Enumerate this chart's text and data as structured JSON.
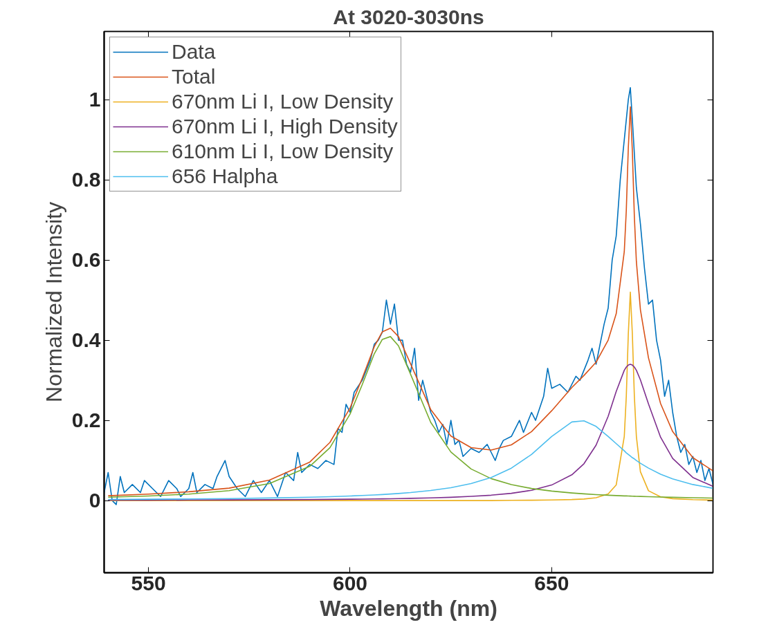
{
  "chart_data": {
    "type": "line",
    "title": "At 3020-3030ns",
    "xlabel": "Wavelength (nm)",
    "ylabel": "Normalized Intensity",
    "xlim": [
      539,
      690
    ],
    "ylim": [
      -0.18,
      1.17
    ],
    "xticks": [
      550,
      600,
      650
    ],
    "yticks": [
      0,
      0.2,
      0.4,
      0.6,
      0.8,
      1
    ],
    "grid": false,
    "legend": "top left",
    "marker": "none",
    "line_style": "solid",
    "series": [
      {
        "name": "Data",
        "color": "#0072bd",
        "x": [
          539,
          540,
          541,
          542,
          543,
          544,
          546,
          548,
          549,
          551,
          553,
          555,
          557,
          558,
          560,
          561,
          562,
          564,
          566,
          567,
          569,
          570,
          572,
          574,
          576,
          578,
          580,
          582,
          584,
          586,
          587,
          588,
          590,
          592,
          594,
          596,
          597,
          598,
          599,
          600,
          601,
          603,
          605,
          606,
          607,
          608,
          609,
          610,
          611,
          612,
          613,
          614,
          615,
          616,
          617,
          618,
          620,
          621,
          622,
          623,
          624,
          625,
          626,
          627,
          628,
          630,
          632,
          634,
          635,
          636,
          637,
          638,
          640,
          642,
          643,
          645,
          646,
          648,
          649,
          650,
          652,
          654,
          656,
          657,
          659,
          660,
          661,
          663,
          664,
          665,
          666,
          667,
          668,
          669,
          669.5,
          670,
          671,
          672,
          673,
          674,
          675,
          676,
          677,
          678,
          679,
          680,
          681,
          682,
          683,
          684,
          685,
          686,
          687,
          688,
          689,
          690
        ],
        "values": [
          0.02,
          0.07,
          0.0,
          -0.01,
          0.06,
          0.02,
          0.04,
          0.02,
          0.05,
          0.03,
          0.01,
          0.05,
          0.03,
          0.01,
          0.03,
          0.07,
          0.02,
          0.04,
          0.03,
          0.06,
          0.1,
          0.06,
          0.03,
          0.01,
          0.05,
          0.02,
          0.05,
          0.01,
          0.07,
          0.05,
          0.12,
          0.07,
          0.09,
          0.08,
          0.1,
          0.09,
          0.18,
          0.17,
          0.24,
          0.22,
          0.27,
          0.3,
          0.35,
          0.39,
          0.4,
          0.42,
          0.5,
          0.44,
          0.49,
          0.4,
          0.4,
          0.34,
          0.32,
          0.38,
          0.25,
          0.3,
          0.22,
          0.2,
          0.17,
          0.19,
          0.14,
          0.2,
          0.14,
          0.15,
          0.11,
          0.13,
          0.12,
          0.14,
          0.12,
          0.1,
          0.13,
          0.15,
          0.16,
          0.2,
          0.17,
          0.22,
          0.2,
          0.26,
          0.33,
          0.28,
          0.29,
          0.27,
          0.31,
          0.3,
          0.35,
          0.38,
          0.34,
          0.44,
          0.48,
          0.6,
          0.66,
          0.8,
          0.9,
          1.0,
          1.03,
          0.95,
          0.78,
          0.69,
          0.58,
          0.49,
          0.5,
          0.4,
          0.35,
          0.26,
          0.3,
          0.22,
          0.16,
          0.12,
          0.14,
          0.09,
          0.11,
          0.07,
          0.1,
          0.05,
          0.08,
          0.04
        ]
      },
      {
        "name": "Total",
        "color": "#d95319",
        "x": [
          540,
          550,
          560,
          570,
          580,
          590,
          595,
          600,
          603,
          606,
          608,
          610,
          612,
          615,
          620,
          625,
          630,
          635,
          640,
          645,
          650,
          655,
          658,
          661,
          664,
          666,
          668,
          668.5,
          669,
          669.5,
          670,
          670.5,
          671,
          672,
          674,
          677,
          680,
          685,
          690
        ],
        "values": [
          0.012,
          0.016,
          0.022,
          0.031,
          0.051,
          0.096,
          0.145,
          0.231,
          0.305,
          0.384,
          0.421,
          0.43,
          0.409,
          0.341,
          0.227,
          0.161,
          0.132,
          0.126,
          0.139,
          0.172,
          0.224,
          0.282,
          0.312,
          0.345,
          0.4,
          0.466,
          0.621,
          0.724,
          0.88,
          0.982,
          0.872,
          0.708,
          0.596,
          0.476,
          0.356,
          0.242,
          0.172,
          0.107,
          0.074
        ]
      },
      {
        "name": "670nm Li I, Low Density",
        "color": "#edb120",
        "x": [
          540,
          550,
          560,
          570,
          580,
          590,
          595,
          600,
          603,
          606,
          608,
          610,
          612,
          615,
          620,
          625,
          630,
          635,
          640,
          645,
          650,
          655,
          658,
          661,
          664,
          666,
          668,
          668.5,
          669,
          669.5,
          670,
          670.5,
          671,
          672,
          674,
          677,
          680,
          685,
          690
        ],
        "values": [
          0,
          0,
          0,
          0,
          0,
          0,
          0,
          0,
          0,
          0,
          0,
          0,
          0,
          0,
          0,
          0,
          0,
          0,
          0.0006,
          0.0009,
          0.0014,
          0.0025,
          0.0039,
          0.0071,
          0.0166,
          0.039,
          0.16,
          0.26,
          0.416,
          0.52,
          0.416,
          0.26,
          0.16,
          0.072,
          0.0245,
          0.0091,
          0.0047,
          0.0022,
          0.0012
        ]
      },
      {
        "name": "670nm Li I, High Density",
        "color": "#7e2f8e",
        "x": [
          540,
          550,
          560,
          570,
          580,
          590,
          595,
          600,
          603,
          606,
          608,
          610,
          612,
          615,
          620,
          625,
          630,
          635,
          640,
          645,
          650,
          655,
          658,
          661,
          664,
          666,
          668,
          668.5,
          669,
          669.5,
          670,
          670.5,
          671,
          672,
          674,
          677,
          680,
          685,
          690
        ],
        "values": [
          0.001,
          0.0012,
          0.0014,
          0.0017,
          0.0021,
          0.0026,
          0.003,
          0.0034,
          0.0037,
          0.0041,
          0.0043,
          0.0046,
          0.005,
          0.0055,
          0.0067,
          0.0082,
          0.0104,
          0.0134,
          0.0181,
          0.0257,
          0.0388,
          0.0643,
          0.0919,
          0.138,
          0.21,
          0.272,
          0.325,
          0.333,
          0.338,
          0.34,
          0.338,
          0.333,
          0.325,
          0.301,
          0.241,
          0.158,
          0.105,
          0.0576,
          0.0355
        ]
      },
      {
        "name": "610nm Li I, Low Density",
        "color": "#77ac30",
        "x": [
          540,
          550,
          560,
          570,
          580,
          590,
          595,
          600,
          603,
          606,
          608,
          610,
          612,
          615,
          620,
          625,
          630,
          635,
          640,
          645,
          650,
          655,
          658,
          661,
          664,
          666,
          668,
          668.5,
          669,
          669.5,
          670,
          670.5,
          671,
          672,
          674,
          677,
          680,
          685,
          690
        ],
        "values": [
          0.0083,
          0.0113,
          0.0161,
          0.0247,
          0.0423,
          0.0854,
          0.132,
          0.216,
          0.289,
          0.366,
          0.402,
          0.409,
          0.386,
          0.315,
          0.195,
          0.121,
          0.0788,
          0.0547,
          0.0398,
          0.0301,
          0.0236,
          0.0189,
          0.0167,
          0.0149,
          0.0134,
          0.0125,
          0.0116,
          0.0116,
          0.0113,
          0.0111,
          0.0109,
          0.0108,
          0.0106,
          0.0103,
          0.0096,
          0.0088,
          0.0081,
          0.0071,
          0.0062
        ]
      },
      {
        "name": "656 Halpha",
        "color": "#4dbeee",
        "x": [
          540,
          550,
          560,
          570,
          580,
          590,
          595,
          600,
          603,
          606,
          608,
          610,
          612,
          615,
          620,
          625,
          630,
          635,
          640,
          645,
          650,
          655,
          658,
          661,
          664,
          666,
          668,
          668.5,
          669,
          669.5,
          670,
          670.5,
          671,
          672,
          674,
          677,
          680,
          685,
          690
        ],
        "values": [
          0.0028,
          0.0034,
          0.0041,
          0.005,
          0.0064,
          0.0084,
          0.0097,
          0.0114,
          0.0126,
          0.014,
          0.0151,
          0.0163,
          0.0177,
          0.02,
          0.0251,
          0.0321,
          0.0424,
          0.0576,
          0.0809,
          0.115,
          0.16,
          0.196,
          0.199,
          0.185,
          0.16,
          0.142,
          0.124,
          0.119,
          0.115,
          0.111,
          0.107,
          0.104,
          0.1,
          0.093,
          0.081,
          0.0658,
          0.0541,
          0.04,
          0.0305
        ]
      }
    ]
  }
}
